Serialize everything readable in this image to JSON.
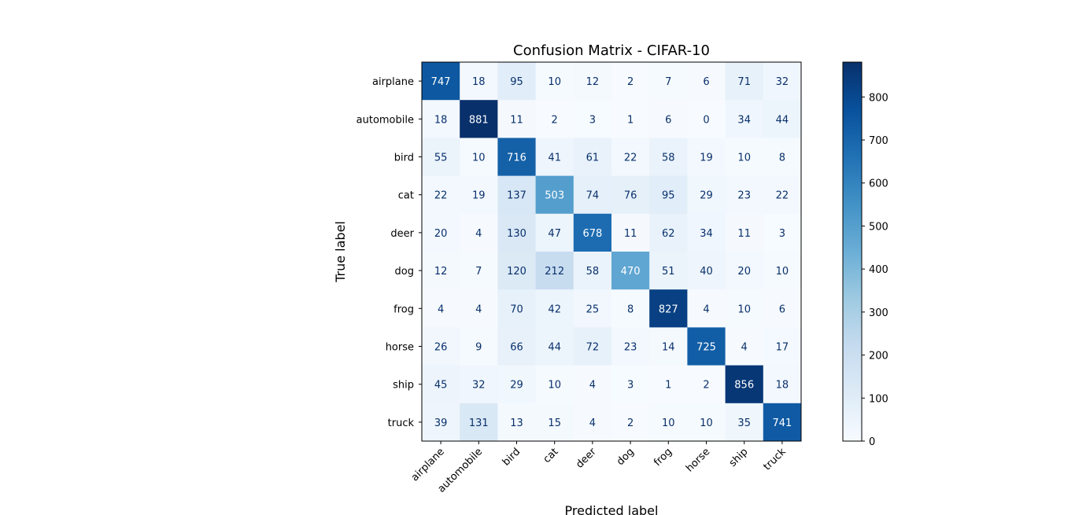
{
  "chart_data": {
    "type": "heatmap",
    "title": "Confusion Matrix - CIFAR-10",
    "xlabel": "Predicted label",
    "ylabel": "True label",
    "x_categories": [
      "airplane",
      "automobile",
      "bird",
      "cat",
      "deer",
      "dog",
      "frog",
      "horse",
      "ship",
      "truck"
    ],
    "y_categories": [
      "airplane",
      "automobile",
      "bird",
      "cat",
      "deer",
      "dog",
      "frog",
      "horse",
      "ship",
      "truck"
    ],
    "values": [
      [
        747,
        18,
        95,
        10,
        12,
        2,
        7,
        6,
        71,
        32
      ],
      [
        18,
        881,
        11,
        2,
        3,
        1,
        6,
        0,
        34,
        44
      ],
      [
        55,
        10,
        716,
        41,
        61,
        22,
        58,
        19,
        10,
        8
      ],
      [
        22,
        19,
        137,
        503,
        74,
        76,
        95,
        29,
        23,
        22
      ],
      [
        20,
        4,
        130,
        47,
        678,
        11,
        62,
        34,
        11,
        3
      ],
      [
        12,
        7,
        120,
        212,
        58,
        470,
        51,
        40,
        20,
        10
      ],
      [
        4,
        4,
        70,
        42,
        25,
        8,
        827,
        4,
        10,
        6
      ],
      [
        26,
        9,
        66,
        44,
        72,
        23,
        14,
        725,
        4,
        17
      ],
      [
        45,
        32,
        29,
        10,
        4,
        3,
        1,
        2,
        856,
        18
      ],
      [
        39,
        131,
        13,
        15,
        4,
        2,
        10,
        10,
        35,
        741
      ]
    ],
    "colormap": "Blues",
    "colorbar": {
      "range": [
        0,
        881
      ],
      "ticks": [
        0,
        100,
        200,
        300,
        400,
        500,
        600,
        700,
        800
      ]
    },
    "x_tick_rotation": 45
  }
}
